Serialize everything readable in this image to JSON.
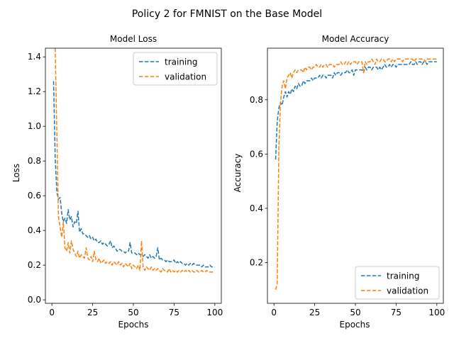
{
  "figure": {
    "title": "Policy 2 for FMNIST on the Base Model"
  },
  "colors": {
    "training": "#1f77b4",
    "validation": "#ff7f0e"
  },
  "chart_data": [
    {
      "type": "line",
      "title": "Model Loss",
      "xlabel": "Epochs",
      "ylabel": "Loss",
      "xlim": [
        -4,
        104
      ],
      "ylim": [
        -0.02,
        1.45
      ],
      "xticks": [
        0,
        25,
        50,
        75,
        100
      ],
      "yticks": [
        0.0,
        0.2,
        0.4,
        0.6,
        0.8,
        1.0,
        1.2,
        1.4
      ],
      "ytick_labels": [
        "0.0",
        "0.2",
        "0.4",
        "0.6",
        "0.8",
        "1.0",
        "1.2",
        "1.4"
      ],
      "legend_position": "top-right",
      "grid": false,
      "series": [
        {
          "name": "training",
          "color": "#1f77b4",
          "style": "dashed",
          "x": [
            1,
            2,
            3,
            4,
            5,
            6,
            7,
            8,
            9,
            10,
            11,
            12,
            13,
            14,
            15,
            16,
            17,
            18,
            19,
            20,
            21,
            22,
            23,
            24,
            25,
            26,
            27,
            28,
            29,
            30,
            31,
            32,
            33,
            34,
            35,
            36,
            37,
            38,
            39,
            40,
            41,
            42,
            43,
            44,
            45,
            46,
            47,
            48,
            49,
            50,
            51,
            52,
            53,
            54,
            55,
            56,
            57,
            58,
            59,
            60,
            61,
            62,
            63,
            64,
            65,
            66,
            67,
            68,
            69,
            70,
            71,
            72,
            73,
            74,
            75,
            76,
            77,
            78,
            79,
            80,
            81,
            82,
            83,
            84,
            85,
            86,
            87,
            88,
            89,
            90,
            91,
            92,
            93,
            94,
            95,
            96,
            97,
            98,
            99,
            100
          ],
          "values": [
            1.26,
            0.82,
            0.62,
            0.58,
            0.59,
            0.5,
            0.45,
            0.47,
            0.44,
            0.52,
            0.46,
            0.48,
            0.42,
            0.45,
            0.44,
            0.51,
            0.39,
            0.41,
            0.38,
            0.38,
            0.37,
            0.36,
            0.37,
            0.35,
            0.36,
            0.34,
            0.35,
            0.33,
            0.33,
            0.34,
            0.32,
            0.33,
            0.32,
            0.31,
            0.32,
            0.34,
            0.3,
            0.31,
            0.3,
            0.28,
            0.29,
            0.29,
            0.28,
            0.28,
            0.27,
            0.28,
            0.28,
            0.33,
            0.27,
            0.27,
            0.27,
            0.26,
            0.27,
            0.26,
            0.26,
            0.25,
            0.26,
            0.25,
            0.24,
            0.26,
            0.24,
            0.25,
            0.24,
            0.25,
            0.3,
            0.23,
            0.24,
            0.23,
            0.23,
            0.22,
            0.23,
            0.22,
            0.22,
            0.22,
            0.23,
            0.21,
            0.22,
            0.21,
            0.22,
            0.21,
            0.21,
            0.2,
            0.21,
            0.2,
            0.21,
            0.2,
            0.21,
            0.2,
            0.2,
            0.2,
            0.2,
            0.19,
            0.2,
            0.19,
            0.19,
            0.19,
            0.2,
            0.19,
            0.19,
            0.19
          ]
        },
        {
          "name": "validation",
          "color": "#ff7f0e",
          "style": "dashed",
          "x": [
            2,
            3,
            4,
            5,
            6,
            7,
            8,
            9,
            10,
            11,
            12,
            13,
            14,
            15,
            16,
            17,
            18,
            19,
            20,
            21,
            22,
            23,
            24,
            25,
            26,
            27,
            28,
            29,
            30,
            31,
            32,
            33,
            34,
            35,
            36,
            37,
            38,
            39,
            40,
            41,
            42,
            43,
            44,
            45,
            46,
            47,
            48,
            49,
            50,
            51,
            52,
            53,
            54,
            55,
            56,
            57,
            58,
            59,
            60,
            61,
            62,
            63,
            64,
            65,
            66,
            67,
            68,
            69,
            70,
            71,
            72,
            73,
            74,
            75,
            76,
            77,
            78,
            79,
            80,
            81,
            82,
            83,
            84,
            85,
            86,
            87,
            88,
            89,
            90,
            91,
            92,
            93,
            94,
            95,
            96,
            97,
            98,
            99,
            100
          ],
          "values": [
            1.45,
            0.97,
            0.48,
            0.42,
            0.36,
            0.45,
            0.3,
            0.28,
            0.33,
            0.27,
            0.34,
            0.29,
            0.27,
            0.25,
            0.28,
            0.24,
            0.26,
            0.25,
            0.24,
            0.3,
            0.24,
            0.23,
            0.25,
            0.22,
            0.28,
            0.23,
            0.22,
            0.24,
            0.21,
            0.22,
            0.23,
            0.21,
            0.22,
            0.21,
            0.22,
            0.2,
            0.22,
            0.21,
            0.2,
            0.22,
            0.2,
            0.21,
            0.19,
            0.21,
            0.2,
            0.19,
            0.21,
            0.18,
            0.2,
            0.19,
            0.18,
            0.2,
            0.17,
            0.34,
            0.19,
            0.17,
            0.19,
            0.18,
            0.17,
            0.19,
            0.17,
            0.18,
            0.17,
            0.18,
            0.17,
            0.16,
            0.18,
            0.17,
            0.17,
            0.16,
            0.18,
            0.16,
            0.17,
            0.16,
            0.17,
            0.16,
            0.17,
            0.16,
            0.17,
            0.16,
            0.17,
            0.16,
            0.17,
            0.16,
            0.17,
            0.16,
            0.16,
            0.17,
            0.16,
            0.16,
            0.17,
            0.16,
            0.16,
            0.17,
            0.16,
            0.16,
            0.16,
            0.16,
            0.16
          ]
        }
      ]
    },
    {
      "type": "line",
      "title": "Model Accuracy",
      "xlabel": "Epochs",
      "ylabel": "Accuracy",
      "xlim": [
        -4,
        104
      ],
      "ylim": [
        0.05,
        0.99
      ],
      "xticks": [
        0,
        25,
        50,
        75,
        100
      ],
      "yticks": [
        0.2,
        0.4,
        0.6,
        0.8
      ],
      "ytick_labels": [
        "0.2",
        "0.4",
        "0.6",
        "0.8"
      ],
      "legend_position": "bottom-right",
      "grid": false,
      "series": [
        {
          "name": "training",
          "color": "#1f77b4",
          "style": "dashed",
          "x": [
            1,
            2,
            3,
            4,
            5,
            6,
            7,
            8,
            9,
            10,
            11,
            12,
            13,
            14,
            15,
            16,
            17,
            18,
            19,
            20,
            21,
            22,
            23,
            24,
            25,
            26,
            27,
            28,
            29,
            30,
            31,
            32,
            33,
            34,
            35,
            36,
            37,
            38,
            39,
            40,
            41,
            42,
            43,
            44,
            45,
            46,
            47,
            48,
            49,
            50,
            51,
            52,
            53,
            54,
            55,
            56,
            57,
            58,
            59,
            60,
            61,
            62,
            63,
            64,
            65,
            66,
            67,
            68,
            69,
            70,
            71,
            72,
            73,
            74,
            75,
            76,
            77,
            78,
            79,
            80,
            81,
            82,
            83,
            84,
            85,
            86,
            87,
            88,
            89,
            90,
            91,
            92,
            93,
            94,
            95,
            96,
            97,
            98,
            99,
            100
          ],
          "values": [
            0.58,
            0.72,
            0.77,
            0.79,
            0.78,
            0.81,
            0.83,
            0.81,
            0.83,
            0.82,
            0.84,
            0.83,
            0.85,
            0.84,
            0.86,
            0.85,
            0.85,
            0.87,
            0.86,
            0.87,
            0.87,
            0.87,
            0.88,
            0.87,
            0.88,
            0.88,
            0.88,
            0.89,
            0.88,
            0.89,
            0.89,
            0.88,
            0.89,
            0.89,
            0.89,
            0.88,
            0.9,
            0.89,
            0.9,
            0.9,
            0.89,
            0.9,
            0.9,
            0.9,
            0.91,
            0.9,
            0.9,
            0.91,
            0.89,
            0.91,
            0.91,
            0.91,
            0.91,
            0.91,
            0.9,
            0.92,
            0.91,
            0.92,
            0.92,
            0.91,
            0.92,
            0.92,
            0.92,
            0.91,
            0.92,
            0.91,
            0.92,
            0.93,
            0.92,
            0.92,
            0.93,
            0.92,
            0.93,
            0.93,
            0.92,
            0.93,
            0.93,
            0.93,
            0.93,
            0.93,
            0.93,
            0.93,
            0.93,
            0.94,
            0.93,
            0.93,
            0.94,
            0.93,
            0.94,
            0.94,
            0.93,
            0.94,
            0.94,
            0.93,
            0.94,
            0.94,
            0.94,
            0.94,
            0.94,
            0.94
          ]
        },
        {
          "name": "validation",
          "color": "#ff7f0e",
          "style": "dashed",
          "x": [
            1,
            2,
            3,
            4,
            5,
            6,
            7,
            8,
            9,
            10,
            11,
            12,
            13,
            14,
            15,
            16,
            17,
            18,
            19,
            20,
            21,
            22,
            23,
            24,
            25,
            26,
            27,
            28,
            29,
            30,
            31,
            32,
            33,
            34,
            35,
            36,
            37,
            38,
            39,
            40,
            41,
            42,
            43,
            44,
            45,
            46,
            47,
            48,
            49,
            50,
            51,
            52,
            53,
            54,
            55,
            56,
            57,
            58,
            59,
            60,
            61,
            62,
            63,
            64,
            65,
            66,
            67,
            68,
            69,
            70,
            71,
            72,
            73,
            74,
            75,
            76,
            77,
            78,
            79,
            80,
            81,
            82,
            83,
            84,
            85,
            86,
            87,
            88,
            89,
            90,
            91,
            92,
            93,
            94,
            95,
            96,
            97,
            98,
            99,
            100
          ],
          "values": [
            0.1,
            0.12,
            0.62,
            0.79,
            0.85,
            0.87,
            0.84,
            0.88,
            0.89,
            0.9,
            0.88,
            0.9,
            0.91,
            0.9,
            0.91,
            0.91,
            0.91,
            0.9,
            0.92,
            0.91,
            0.92,
            0.92,
            0.91,
            0.92,
            0.92,
            0.93,
            0.92,
            0.92,
            0.93,
            0.92,
            0.93,
            0.93,
            0.92,
            0.93,
            0.93,
            0.93,
            0.92,
            0.93,
            0.93,
            0.93,
            0.94,
            0.93,
            0.93,
            0.94,
            0.93,
            0.94,
            0.93,
            0.94,
            0.94,
            0.94,
            0.93,
            0.94,
            0.94,
            0.94,
            0.9,
            0.94,
            0.93,
            0.94,
            0.94,
            0.95,
            0.94,
            0.93,
            0.95,
            0.94,
            0.94,
            0.95,
            0.95,
            0.94,
            0.94,
            0.95,
            0.95,
            0.94,
            0.95,
            0.94,
            0.95,
            0.95,
            0.95,
            0.95,
            0.94,
            0.95,
            0.95,
            0.95,
            0.95,
            0.95,
            0.95,
            0.94,
            0.95,
            0.95,
            0.95,
            0.95,
            0.95,
            0.95,
            0.94,
            0.95,
            0.95,
            0.95,
            0.95,
            0.95,
            0.95,
            0.95
          ]
        }
      ]
    }
  ]
}
